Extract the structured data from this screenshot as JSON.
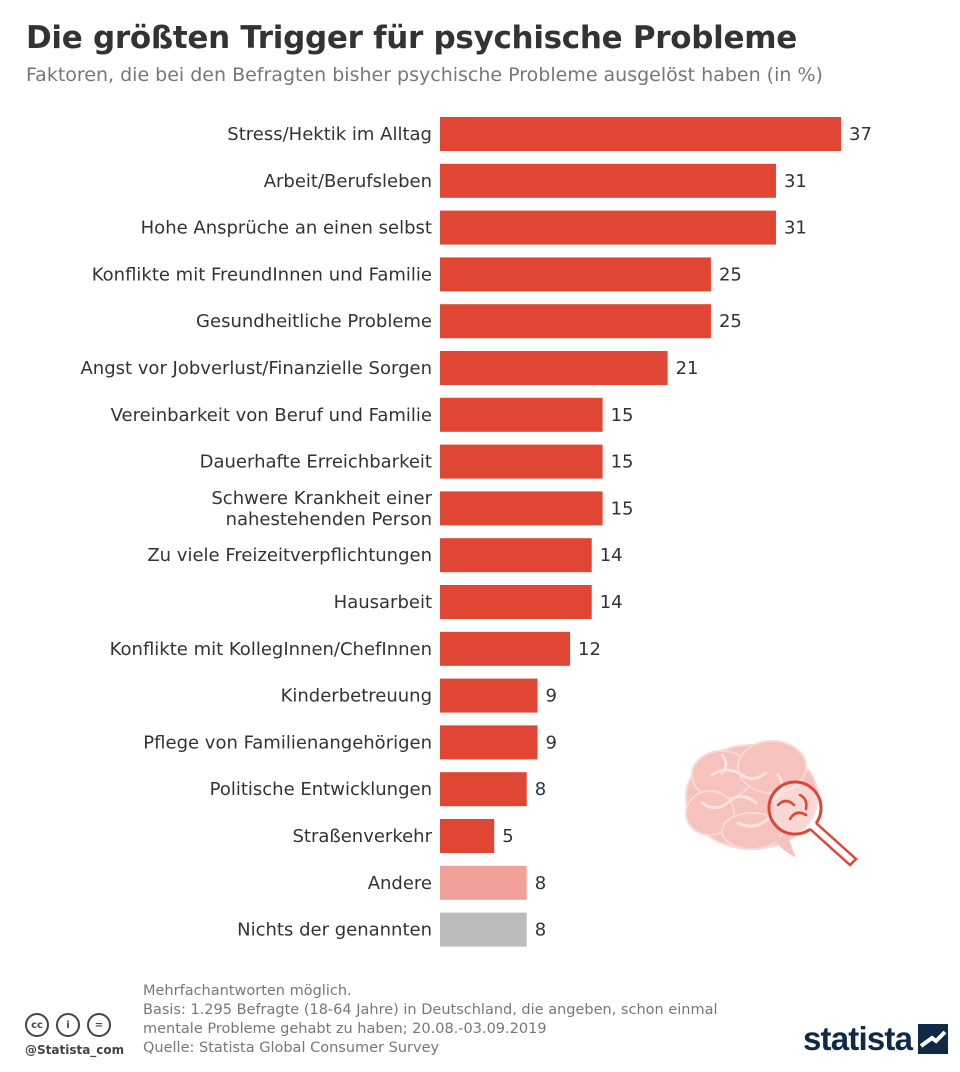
{
  "header": {
    "title": "Die größten Trigger für psychische Probleme",
    "subtitle": "Faktoren, die bei den Befragten bisher psychische Probleme ausgelöst haben (in %)"
  },
  "chart_data": {
    "type": "bar",
    "orientation": "horizontal",
    "categories": [
      "Stress/Hektik im Alltag",
      "Arbeit/Berufsleben",
      "Hohe Ansprüche an einen selbst",
      "Konflikte mit FreundInnen und Familie",
      "Gesundheitliche Probleme",
      "Angst vor Jobverlust/Finanzielle Sorgen",
      "Vereinbarkeit von Beruf und Familie",
      "Dauerhafte Erreichbarkeit",
      "Schwere Krankheit einer nahestehenden Person",
      "Zu viele Freizeitverpflichtungen",
      "Hausarbeit",
      "Konflikte mit KollegInnen/ChefInnen",
      "Kinderbetreuung",
      "Pflege von Familienangehörigen",
      "Politische Entwicklungen",
      "Straßenverkehr",
      "Andere",
      "Nichts der genannten"
    ],
    "label_lines": [
      [
        "Stress/Hektik im Alltag"
      ],
      [
        "Arbeit/Berufsleben"
      ],
      [
        "Hohe Ansprüche an einen selbst"
      ],
      [
        "Konflikte mit FreundInnen und Familie"
      ],
      [
        "Gesundheitliche Probleme"
      ],
      [
        "Angst vor Jobverlust/Finanzielle Sorgen"
      ],
      [
        "Vereinbarkeit von Beruf und Familie"
      ],
      [
        "Dauerhafte Erreichbarkeit"
      ],
      [
        "Schwere Krankheit einer",
        "nahestehenden Person"
      ],
      [
        "Zu viele Freizeitverpflichtungen"
      ],
      [
        "Hausarbeit"
      ],
      [
        "Konflikte mit KollegInnen/ChefInnen"
      ],
      [
        "Kinderbetreuung"
      ],
      [
        "Pflege von Familienangehörigen"
      ],
      [
        "Politische Entwicklungen"
      ],
      [
        "Straßenverkehr"
      ],
      [
        "Andere"
      ],
      [
        "Nichts der genannten"
      ]
    ],
    "values": [
      37,
      31,
      31,
      25,
      25,
      21,
      15,
      15,
      15,
      14,
      14,
      12,
      9,
      9,
      8,
      5,
      8,
      8
    ],
    "colors": [
      "#e04634",
      "#e04634",
      "#e04634",
      "#e04634",
      "#e04634",
      "#e04634",
      "#e04634",
      "#e04634",
      "#e04634",
      "#e04634",
      "#e04634",
      "#e04634",
      "#e04634",
      "#e04634",
      "#e04634",
      "#e04634",
      "#f0a198",
      "#bcbcbc"
    ],
    "xlim": [
      0,
      37
    ],
    "unit": "%"
  },
  "footer": {
    "notes": [
      "Mehrfachantworten möglich.",
      "Basis: 1.295 Befragte (18-64 Jahre) in Deutschland, die angeben, schon einmal mentale Probleme gehabt zu haben; 20.08.-03.09.2019",
      "Quelle: Statista Global Consumer Survey"
    ],
    "license_icons": [
      "cc-icon",
      "by-icon",
      "nd-icon"
    ],
    "license_glyphs": [
      "cc",
      "i",
      "="
    ],
    "handle": "@Statista_com",
    "brand": "statista"
  },
  "illustration": {
    "icon": "brain-magnifier-icon"
  }
}
